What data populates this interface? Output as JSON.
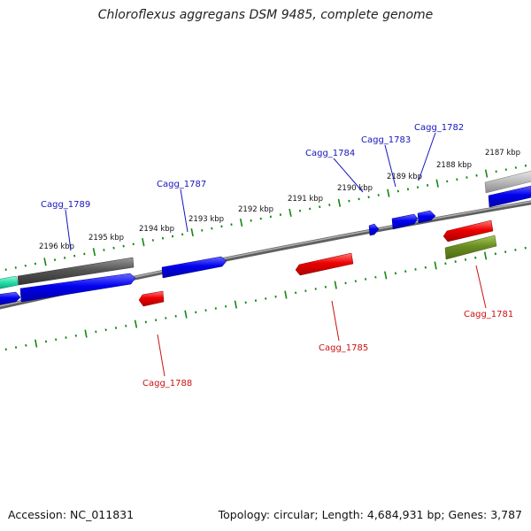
{
  "title": "Chloroflexus aggregans DSM 9485, complete genome",
  "footer": {
    "accession": "Accession: NC_011831",
    "stats": "Topology: circular; Length: 4,684,931 bp; Genes: 3,787"
  },
  "colors": {
    "forward_gene": "#0000ee",
    "reverse_gene": "#ee0000",
    "gene_label_forward": "#1515bb",
    "gene_label_reverse": "#cc1111",
    "tick": "#118811",
    "backbone": "#808080",
    "rna_dark": "#555555",
    "rna_light": "#bbbbbb",
    "other_green": "#6b8e23",
    "teal": "#22ddaa"
  },
  "scale_ticks_kbp": [
    "2187 kbp",
    "2188 kbp",
    "2189 kbp",
    "2190 kbp",
    "2191 kbp",
    "2192 kbp",
    "2193 kbp",
    "2194 kbp",
    "2195 kbp",
    "2196 kbp"
  ],
  "gene_labels": [
    {
      "name": "Cagg_1782",
      "strand": "forward"
    },
    {
      "name": "Cagg_1783",
      "strand": "forward"
    },
    {
      "name": "Cagg_1784",
      "strand": "forward"
    },
    {
      "name": "Cagg_1787",
      "strand": "forward"
    },
    {
      "name": "Cagg_1789",
      "strand": "forward"
    },
    {
      "name": "Cagg_1781",
      "strand": "reverse"
    },
    {
      "name": "Cagg_1785",
      "strand": "reverse"
    },
    {
      "name": "Cagg_1788",
      "strand": "reverse"
    }
  ],
  "features": [
    {
      "kind": "teal",
      "strand": "forward"
    },
    {
      "kind": "rna_dark",
      "strand": "forward"
    },
    {
      "kind": "gene",
      "strand": "forward"
    },
    {
      "kind": "gene",
      "strand": "forward"
    },
    {
      "kind": "gene",
      "strand": "forward"
    },
    {
      "kind": "gene",
      "strand": "forward"
    },
    {
      "kind": "gene",
      "strand": "forward"
    },
    {
      "kind": "gene",
      "strand": "forward"
    },
    {
      "kind": "rna_light",
      "strand": "forward"
    },
    {
      "kind": "gene",
      "strand": "forward"
    },
    {
      "kind": "gene",
      "strand": "reverse"
    },
    {
      "kind": "gene",
      "strand": "reverse"
    },
    {
      "kind": "gene",
      "strand": "reverse"
    },
    {
      "kind": "other_green",
      "strand": "reverse"
    }
  ]
}
